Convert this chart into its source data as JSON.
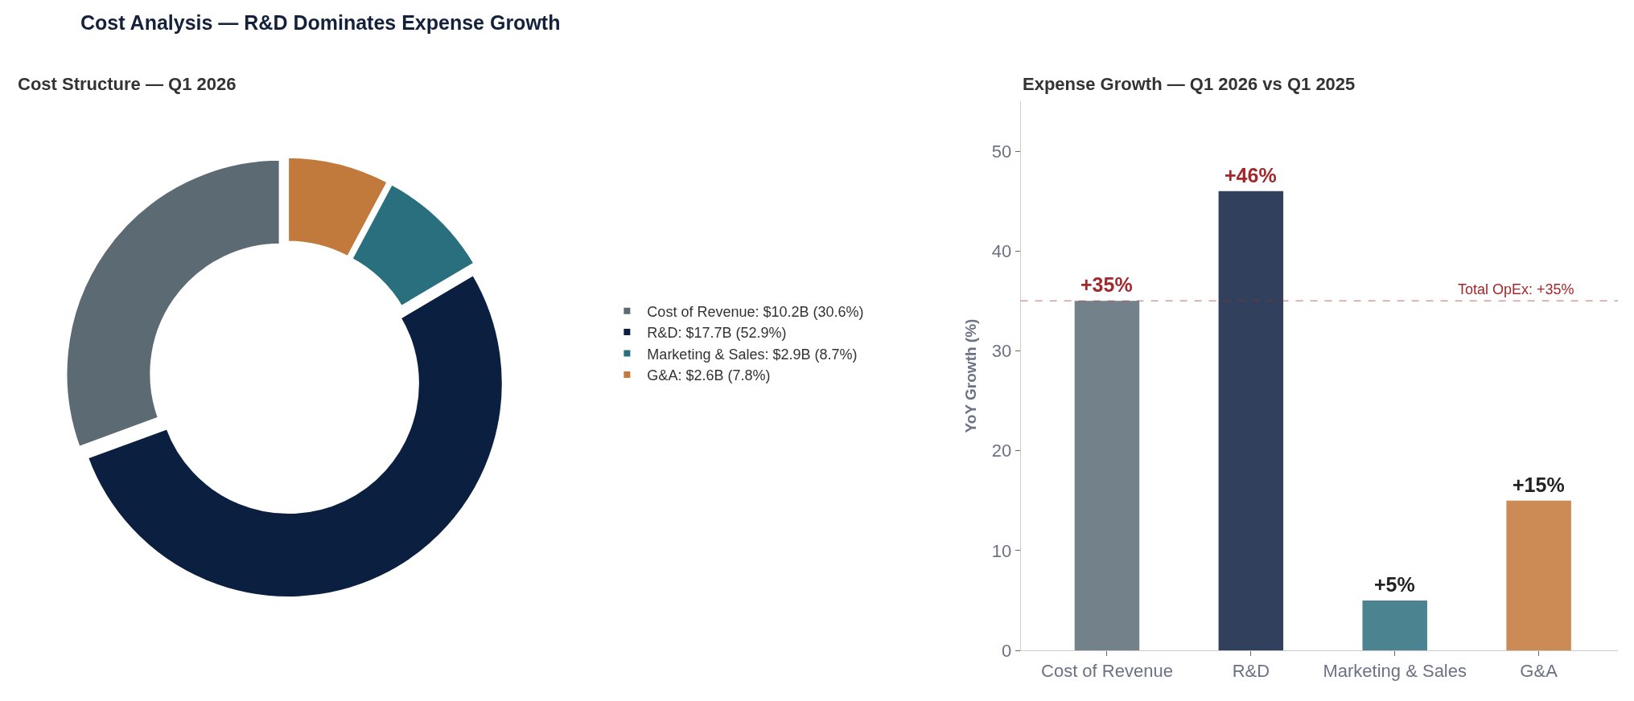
{
  "chart_data": [
    {
      "type": "donut",
      "title": "Cost Analysis — R&D Dominates Expense Growth",
      "subtitle": "Cost Structure — Q1 2026",
      "categories": [
        "Cost of Revenue: $10.2B (30.6%)",
        "R&D: $17.7B (52.9%)",
        "Marketing & Sales: $2.9B (8.7%)",
        "G&A: $2.6B (7.8%)"
      ],
      "values": [
        30.6,
        52.9,
        8.7,
        7.8
      ],
      "colors": [
        "#5b6a73",
        "#0b1f40",
        "#2a6f7d",
        "#c17a3b"
      ],
      "legend": "right"
    },
    {
      "type": "bar",
      "title": "Expense Growth — Q1 2026 vs Q1 2025",
      "ylabel": "YoY Growth (%)",
      "categories": [
        "Cost of Revenue",
        "R&D",
        "Marketing & Sales",
        "G&A"
      ],
      "values": [
        35,
        46,
        5,
        15
      ],
      "colors": [
        "#73828a",
        "#31415d",
        "#4b8490",
        "#cc8b55"
      ],
      "value_labels": [
        "+35%",
        "+46%",
        "+5%",
        "+15%"
      ],
      "ylim": [
        0,
        55
      ],
      "yticks": [
        0,
        10,
        20,
        30,
        40,
        50
      ],
      "ref_lines": [
        {
          "axis": "y",
          "value": 35,
          "label": "Total OpEx: +35%",
          "color": "#a3282b",
          "line_style": "dashed"
        }
      ],
      "legend": false
    }
  ]
}
